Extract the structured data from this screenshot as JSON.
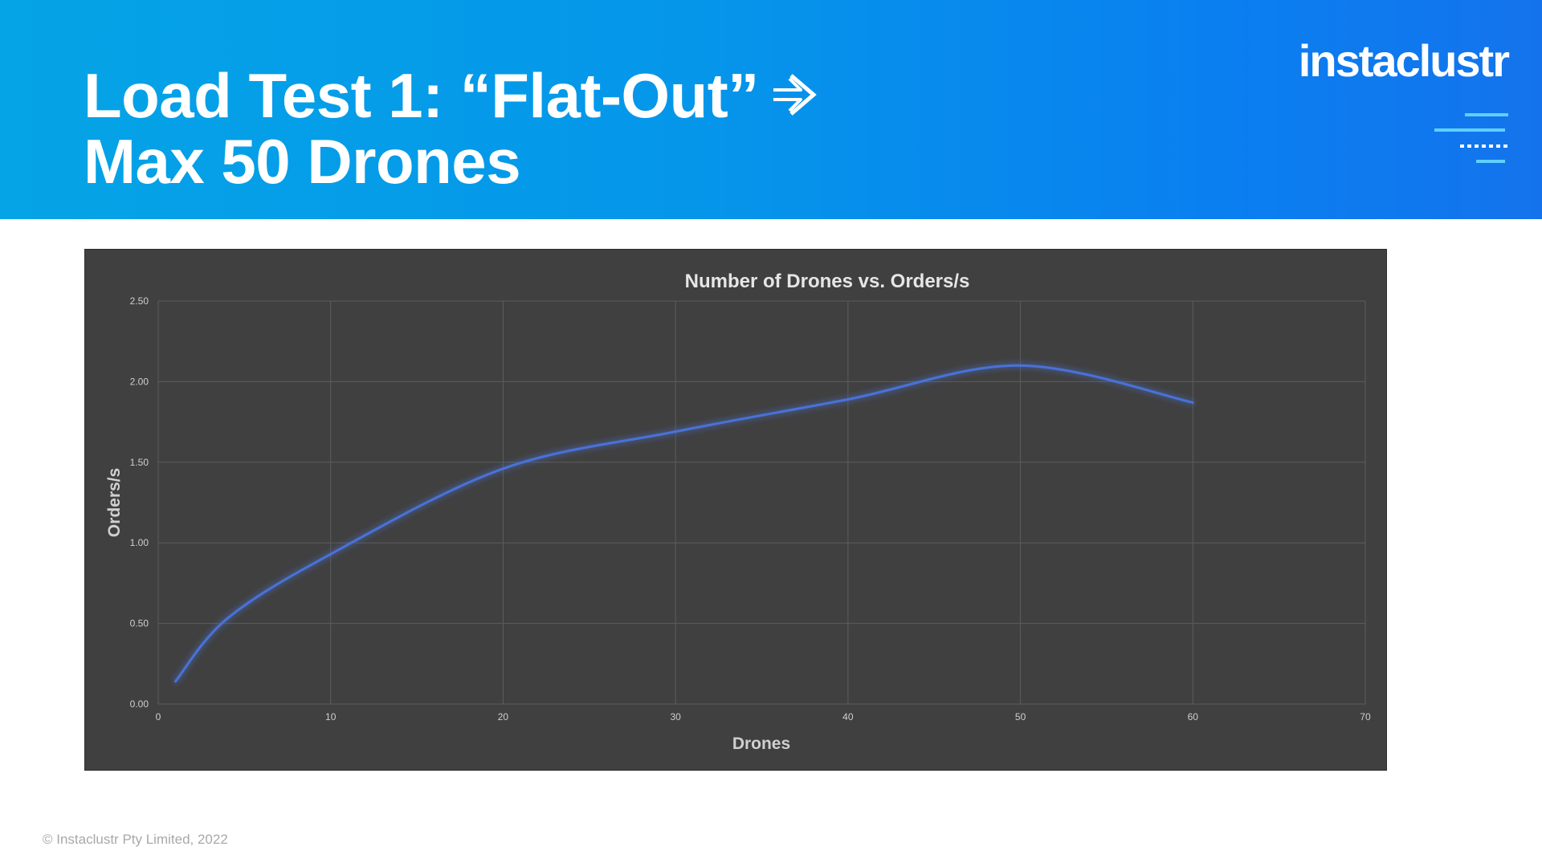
{
  "slide": {
    "title_line1": "Load Test 1: “Flat-Out”",
    "title_line2": "Max 50 Drones",
    "logo": "instaclustr",
    "footer": "© Instaclustr Pty Limited, 2022",
    "arrow_icon": "arrow-right-icon",
    "colors": {
      "header_start": "#05a4e6",
      "header_end": "#1473ec",
      "chart_background": "#404040",
      "series_line": "#4a72d8"
    }
  },
  "chart_data": {
    "type": "line",
    "title": "Number of Drones vs. Orders/s",
    "xlabel": "Drones",
    "ylabel": "Orders/s",
    "xlim": [
      0,
      70
    ],
    "ylim": [
      0,
      2.5
    ],
    "x_ticks": [
      "0",
      "10",
      "20",
      "30",
      "40",
      "50",
      "60",
      "70"
    ],
    "y_ticks": [
      "0.00",
      "0.50",
      "1.00",
      "1.50",
      "2.00",
      "2.50"
    ],
    "grid": true,
    "smooth": true,
    "series": [
      {
        "x": [
          1,
          4,
          10,
          20,
          30,
          40,
          50,
          60
        ],
        "y": [
          0.14,
          0.53,
          0.93,
          1.46,
          1.69,
          1.89,
          2.1,
          1.87
        ]
      }
    ]
  }
}
